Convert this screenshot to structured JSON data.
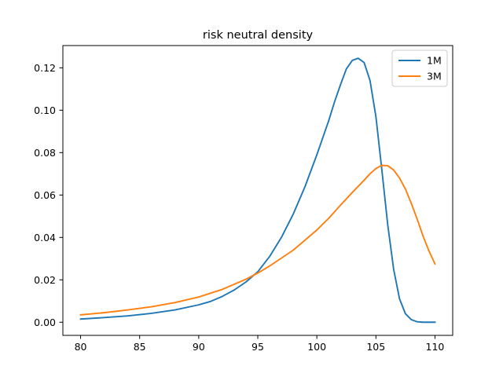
{
  "chart_data": {
    "type": "line",
    "title": "risk neutral density",
    "xlabel": "",
    "ylabel": "",
    "xlim": [
      78.5,
      111.5
    ],
    "ylim": [
      -0.0062,
      0.1305
    ],
    "xticks": [
      80,
      85,
      90,
      95,
      100,
      105,
      110
    ],
    "yticks": [
      0.0,
      0.02,
      0.04,
      0.06,
      0.08,
      0.1,
      0.12
    ],
    "xtick_labels": [
      "80",
      "85",
      "90",
      "95",
      "100",
      "105",
      "110"
    ],
    "ytick_labels": [
      "0.00",
      "0.02",
      "0.04",
      "0.06",
      "0.08",
      "0.10",
      "0.12"
    ],
    "grid": false,
    "legend_position": "upper-right",
    "series": [
      {
        "name": "1M",
        "color": "#1f77b4",
        "x": [
          80,
          82,
          84,
          86,
          88,
          90,
          91,
          92,
          93,
          94,
          95,
          96,
          97,
          98,
          99,
          100,
          101,
          101.5,
          102,
          102.5,
          103,
          103.5,
          104,
          104.5,
          105,
          105.5,
          106,
          106.5,
          107,
          107.5,
          108,
          108.5,
          109,
          110
        ],
        "y": [
          0.0015,
          0.0022,
          0.003,
          0.0042,
          0.0058,
          0.0082,
          0.0098,
          0.0122,
          0.0152,
          0.019,
          0.0238,
          0.031,
          0.04,
          0.051,
          0.064,
          0.079,
          0.095,
          0.104,
          0.112,
          0.1195,
          0.1235,
          0.1245,
          0.1225,
          0.114,
          0.097,
          0.072,
          0.046,
          0.025,
          0.011,
          0.004,
          0.0012,
          0.0002,
          0.0,
          0.0
        ]
      },
      {
        "name": "3M",
        "color": "#ff7f0e",
        "x": [
          80,
          82,
          84,
          86,
          88,
          90,
          92,
          94,
          95,
          96,
          98,
          100,
          101,
          102,
          103,
          104,
          104.5,
          105,
          105.5,
          106,
          106.5,
          107,
          107.5,
          108,
          108.5,
          109,
          109.5,
          110
        ],
        "y": [
          0.0035,
          0.0045,
          0.0058,
          0.0073,
          0.0093,
          0.0119,
          0.0155,
          0.0203,
          0.0232,
          0.0265,
          0.034,
          0.0435,
          0.049,
          0.0552,
          0.0612,
          0.067,
          0.07,
          0.0725,
          0.074,
          0.0738,
          0.0718,
          0.068,
          0.0628,
          0.056,
          0.0485,
          0.0405,
          0.0335,
          0.0275
        ]
      }
    ]
  }
}
